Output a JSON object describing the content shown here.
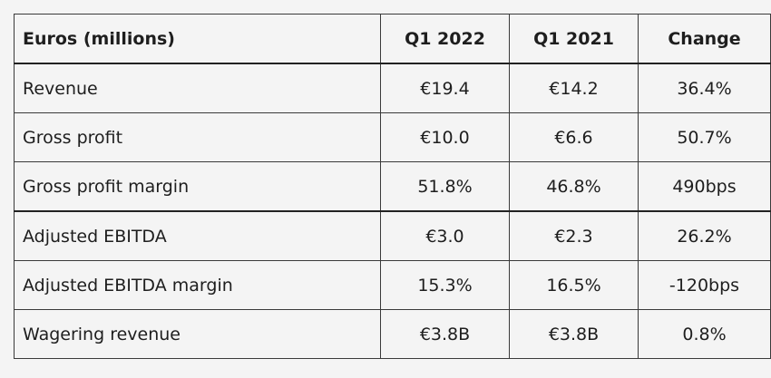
{
  "table": {
    "headers": [
      "Euros (millions)",
      "Q1 2022",
      "Q1 2021",
      "Change"
    ],
    "rows": [
      [
        "Revenue",
        "€19.4",
        "€14.2",
        "36.4%"
      ],
      [
        "Gross profit",
        "€10.0",
        "€6.6",
        "50.7%"
      ],
      [
        "Gross profit margin",
        "51.8%",
        "46.8%",
        "490bps"
      ],
      [
        "Adjusted EBITDA",
        "€3.0",
        "€2.3",
        "26.2%"
      ],
      [
        "Adjusted EBITDA margin",
        "15.3%",
        "16.5%",
        "-120bps"
      ],
      [
        "Wagering revenue",
        "€3.8B",
        "€3.8B",
        "0.8%"
      ]
    ]
  }
}
